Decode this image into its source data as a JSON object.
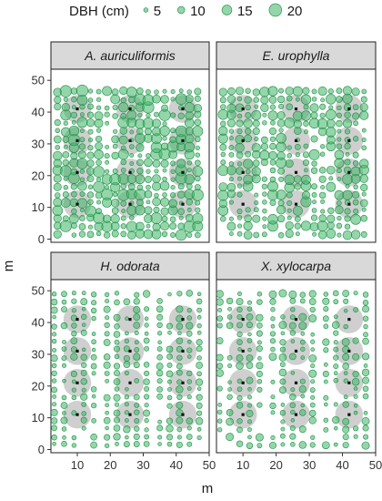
{
  "chart_data": {
    "type": "scatter",
    "facet_layout": "2x2",
    "xlabel": "m",
    "ylabel": "m",
    "xlim": [
      0,
      50
    ],
    "ylim": [
      0,
      50
    ],
    "x_ticks": [
      "10",
      "20",
      "30",
      "40",
      "50"
    ],
    "y_ticks": [
      "0",
      "10",
      "20",
      "30",
      "40",
      "50"
    ],
    "legend": {
      "title": "DBH (cm)",
      "placement": "top",
      "entries": [
        {
          "label": "5",
          "dbh": 5
        },
        {
          "label": "10",
          "dbh": 10
        },
        {
          "label": "15",
          "dbh": 15
        },
        {
          "label": "20",
          "dbh": 20
        }
      ]
    },
    "colors": {
      "tree_fill": "#3cb464",
      "tree_stroke": "#1e8c46",
      "plot_zone": "#bfbfbf",
      "plot_center": "#111111",
      "strip": "#d9d9d9"
    },
    "panels": [
      {
        "species": "A. auriculiformis",
        "columns": [
          4,
          6.5,
          9,
          11.5,
          14,
          16.5,
          19,
          21.5,
          24,
          26.5,
          29,
          31.5,
          34,
          36.5,
          39,
          41.5,
          44,
          46.5
        ],
        "row_spacing": 2.5,
        "y_range": [
          1.5,
          48.5
        ],
        "dbh_range": [
          4,
          18
        ],
        "gap_fraction": 0.05,
        "seed": 11,
        "subplots": [
          [
            10,
            41
          ],
          [
            10,
            31
          ],
          [
            10,
            21
          ],
          [
            10,
            11
          ],
          [
            26,
            41
          ],
          [
            26,
            31
          ],
          [
            26,
            21
          ],
          [
            26,
            11
          ],
          [
            42,
            41
          ],
          [
            42,
            31
          ],
          [
            42,
            21
          ],
          [
            42,
            11
          ]
        ]
      },
      {
        "species": "E. urophylla",
        "columns": [
          4,
          6.5,
          9,
          11.5,
          14,
          16.5,
          19,
          21.5,
          24,
          26.5,
          29,
          31.5,
          34,
          36.5,
          39,
          41.5,
          44,
          46.5
        ],
        "row_spacing": 2.5,
        "y_range": [
          1.5,
          48.5
        ],
        "dbh_range": [
          4,
          16
        ],
        "gap_fraction": 0.12,
        "seed": 23,
        "subplots": [
          [
            10,
            41
          ],
          [
            10,
            31
          ],
          [
            10,
            21
          ],
          [
            10,
            11
          ],
          [
            26,
            41
          ],
          [
            26,
            31
          ],
          [
            26,
            21
          ],
          [
            26,
            11
          ],
          [
            42,
            41
          ],
          [
            42,
            31
          ],
          [
            42,
            21
          ],
          [
            42,
            11
          ]
        ]
      },
      {
        "species": "H. odorata",
        "columns": [
          3,
          6,
          9,
          12,
          15,
          19,
          22,
          25,
          28,
          31,
          35,
          38,
          41,
          44,
          47
        ],
        "row_spacing": 2.5,
        "y_range": [
          1.5,
          49
        ],
        "dbh_range": [
          3.5,
          10
        ],
        "gap_fraction": 0.14,
        "seed": 37,
        "subplots": [
          [
            10,
            41
          ],
          [
            10,
            31
          ],
          [
            10,
            21
          ],
          [
            10,
            11
          ],
          [
            26,
            41
          ],
          [
            26,
            31
          ],
          [
            26,
            21
          ],
          [
            26,
            11
          ],
          [
            42,
            41
          ],
          [
            42,
            31
          ],
          [
            42,
            21
          ],
          [
            42,
            11
          ]
        ]
      },
      {
        "species": "X. xylocarpa",
        "columns": [
          3,
          6,
          9,
          12,
          15,
          19,
          22,
          25,
          28,
          31,
          35,
          38,
          41,
          44,
          47
        ],
        "row_spacing": 2.5,
        "y_range": [
          1.5,
          49
        ],
        "dbh_range": [
          3.5,
          11
        ],
        "gap_fraction": 0.2,
        "seed": 51,
        "subplots": [
          [
            10,
            41
          ],
          [
            10,
            31
          ],
          [
            10,
            21
          ],
          [
            10,
            11
          ],
          [
            26,
            41
          ],
          [
            26,
            31
          ],
          [
            26,
            21
          ],
          [
            26,
            11
          ],
          [
            42,
            41
          ],
          [
            42,
            31
          ],
          [
            42,
            21
          ],
          [
            42,
            11
          ]
        ]
      }
    ]
  }
}
